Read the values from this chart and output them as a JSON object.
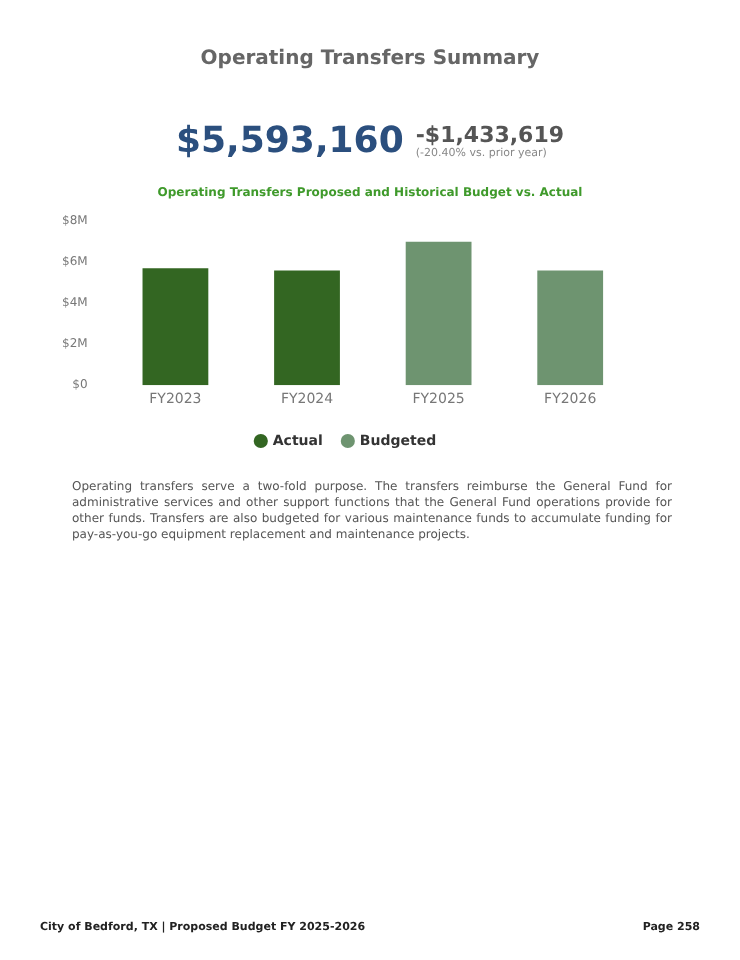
{
  "chart_data": {
    "type": "bar",
    "title": "Operating Transfers Summary",
    "subtitle": "Operating Transfers Proposed and Historical Budget vs. Actual",
    "categories": [
      "FY2023",
      "FY2024",
      "FY2025",
      "FY2026"
    ],
    "series": [
      {
        "name": "Actual",
        "color": "#336622",
        "values": [
          5700000,
          5600000,
          null,
          null
        ]
      },
      {
        "name": "Budgeted",
        "color": "#6e9470",
        "values": [
          null,
          null,
          7000000,
          5600000
        ]
      }
    ],
    "ylim": [
      0,
      8000000
    ],
    "yticks": [
      {
        "value": 0,
        "label": "$0"
      },
      {
        "value": 2000000,
        "label": "$2M"
      },
      {
        "value": 4000000,
        "label": "$4M"
      },
      {
        "value": 6000000,
        "label": "$6M"
      },
      {
        "value": 8000000,
        "label": "$8M"
      }
    ],
    "grid": false,
    "legend": "bottom",
    "annotations": [
      "$5,593,160",
      "-$1,433,619",
      "(-20.40% vs. prior year)",
      "Operating transfers serve a two-fold purpose.  The transfers reimburse the General Fund for administrative services and other support functions that the General Fund operations provide for other funds.  Transfers are also budgeted for various maintenance funds to accumulate funding for pay-as-you-go equipment replacement and maintenance projects.",
      "City of Bedford, TX | Proposed Budget FY 2025-2026",
      "Page 258"
    ]
  }
}
